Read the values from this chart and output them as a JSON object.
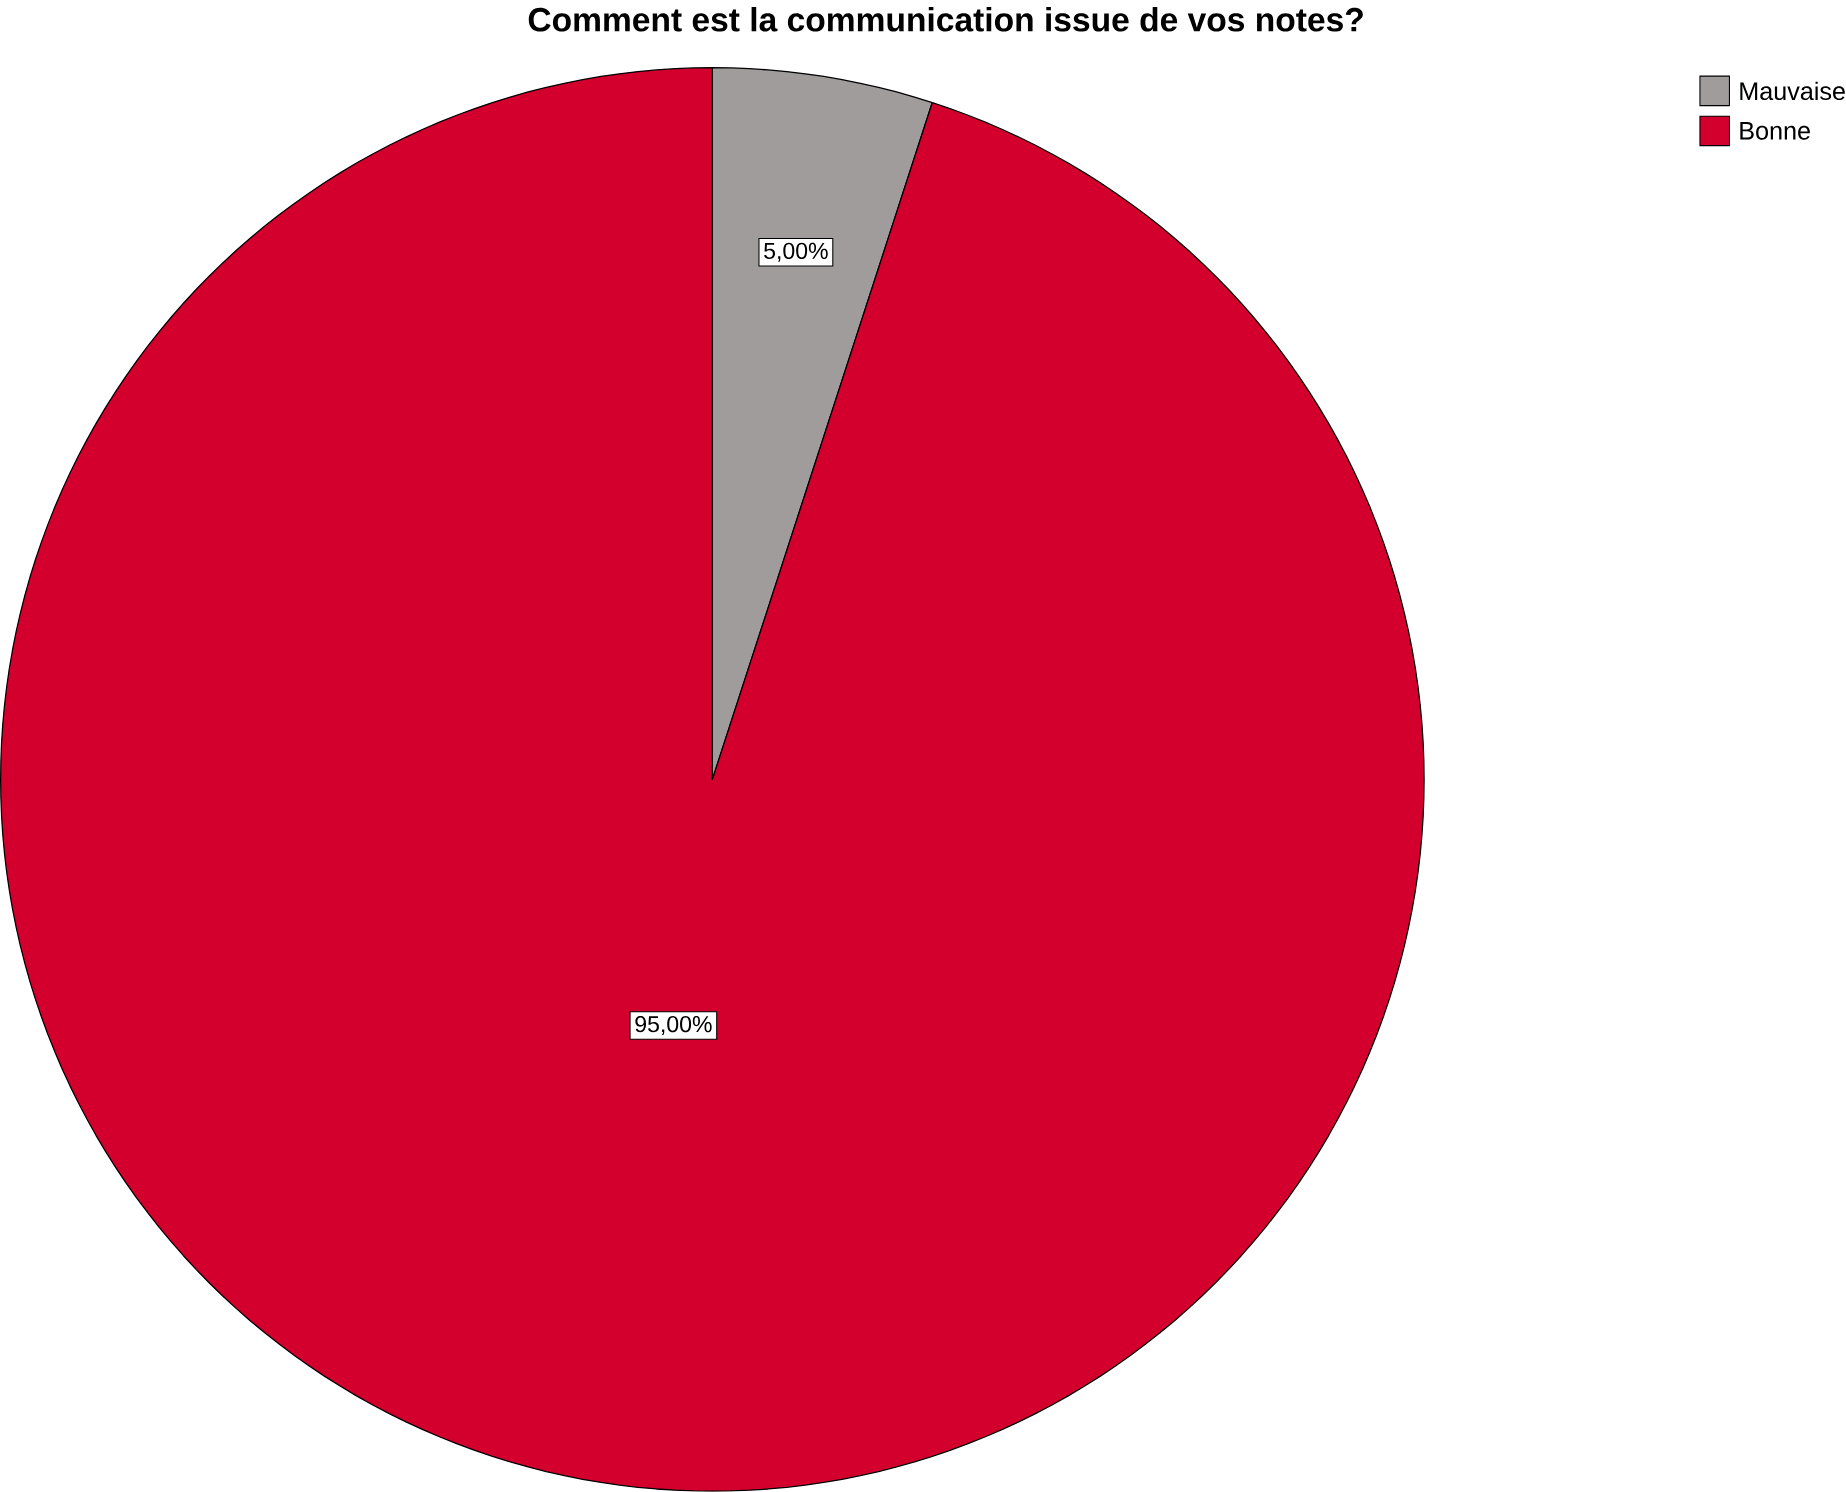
{
  "chart_data": {
    "type": "pie",
    "title": "Comment est la communication issue de vos notes?",
    "categories": [
      "Mauvaise",
      "Bonne"
    ],
    "values": [
      5,
      95
    ],
    "colors": [
      "#a09c9c",
      "#d3002e"
    ],
    "value_labels": [
      "5,00%",
      "95,00%"
    ],
    "legend": "top right"
  }
}
